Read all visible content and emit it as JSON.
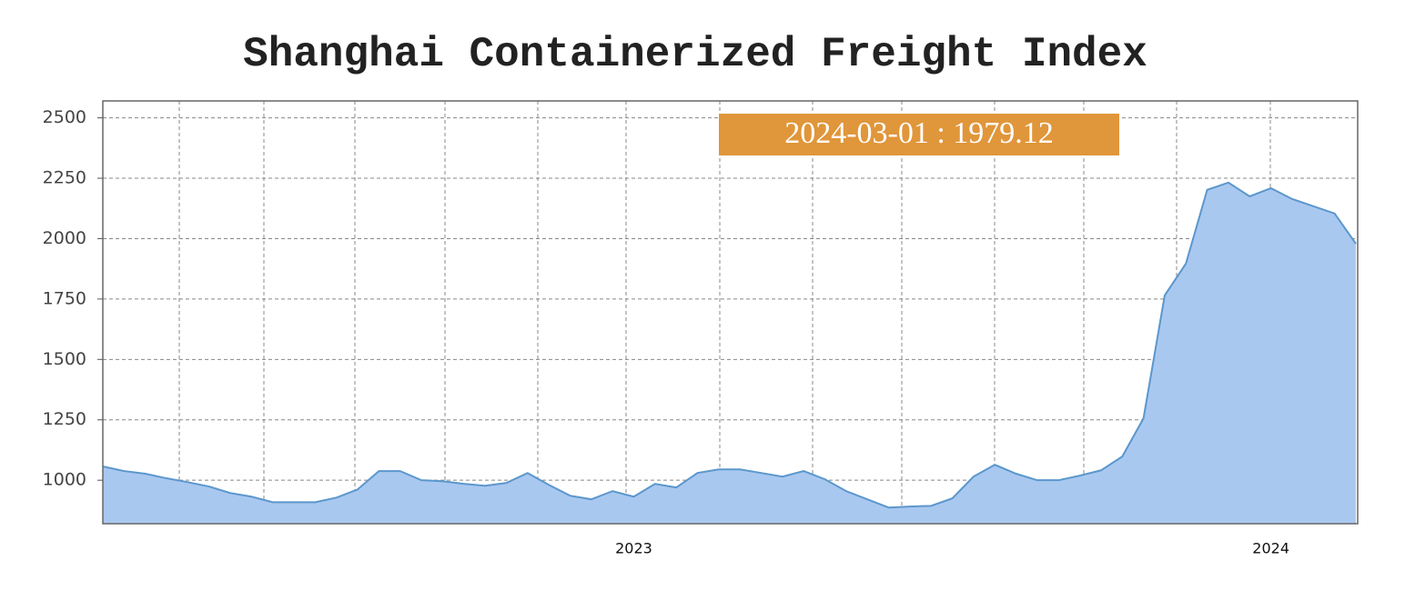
{
  "chart_data": {
    "type": "area",
    "title": "Shanghai Containerized Freight Index",
    "annotation": "2024-03-01 : 1979.12",
    "categories": [
      null,
      null,
      null,
      null,
      null,
      null,
      null,
      null,
      null,
      null,
      null,
      null,
      null,
      null,
      null,
      null,
      null,
      null,
      null,
      null,
      null,
      null,
      null,
      null,
      null,
      "2023",
      null,
      null,
      null,
      null,
      null,
      null,
      null,
      null,
      null,
      null,
      null,
      null,
      null,
      null,
      null,
      null,
      null,
      null,
      null,
      null,
      null,
      null,
      null,
      null,
      null,
      null,
      null,
      null,
      null,
      "2024",
      null,
      null,
      null,
      null
    ],
    "values": [
      1057,
      1038,
      1027,
      1008,
      992,
      974,
      947,
      932,
      909,
      909,
      909,
      928,
      962,
      1038,
      1038,
      1000,
      996,
      985,
      977,
      989,
      1030,
      981,
      936,
      921,
      955,
      932,
      985,
      970,
      1030,
      1045,
      1045,
      1030,
      1015,
      1038,
      1004,
      955,
      921,
      887,
      891,
      894,
      925,
      1015,
      1064,
      1027,
      1000,
      1000,
      1019,
      1041,
      1098,
      1256,
      1765,
      1897,
      2202,
      2232,
      2175,
      2209,
      2164,
      2134,
      2104,
      1979.12
    ],
    "color": "#a9c8f0",
    "line_color": "#5b97cc",
    "ylim": [
      820,
      2570
    ],
    "yticks": [
      1000,
      1250,
      1500,
      1750,
      2000,
      2250,
      2500
    ],
    "grid": true
  }
}
